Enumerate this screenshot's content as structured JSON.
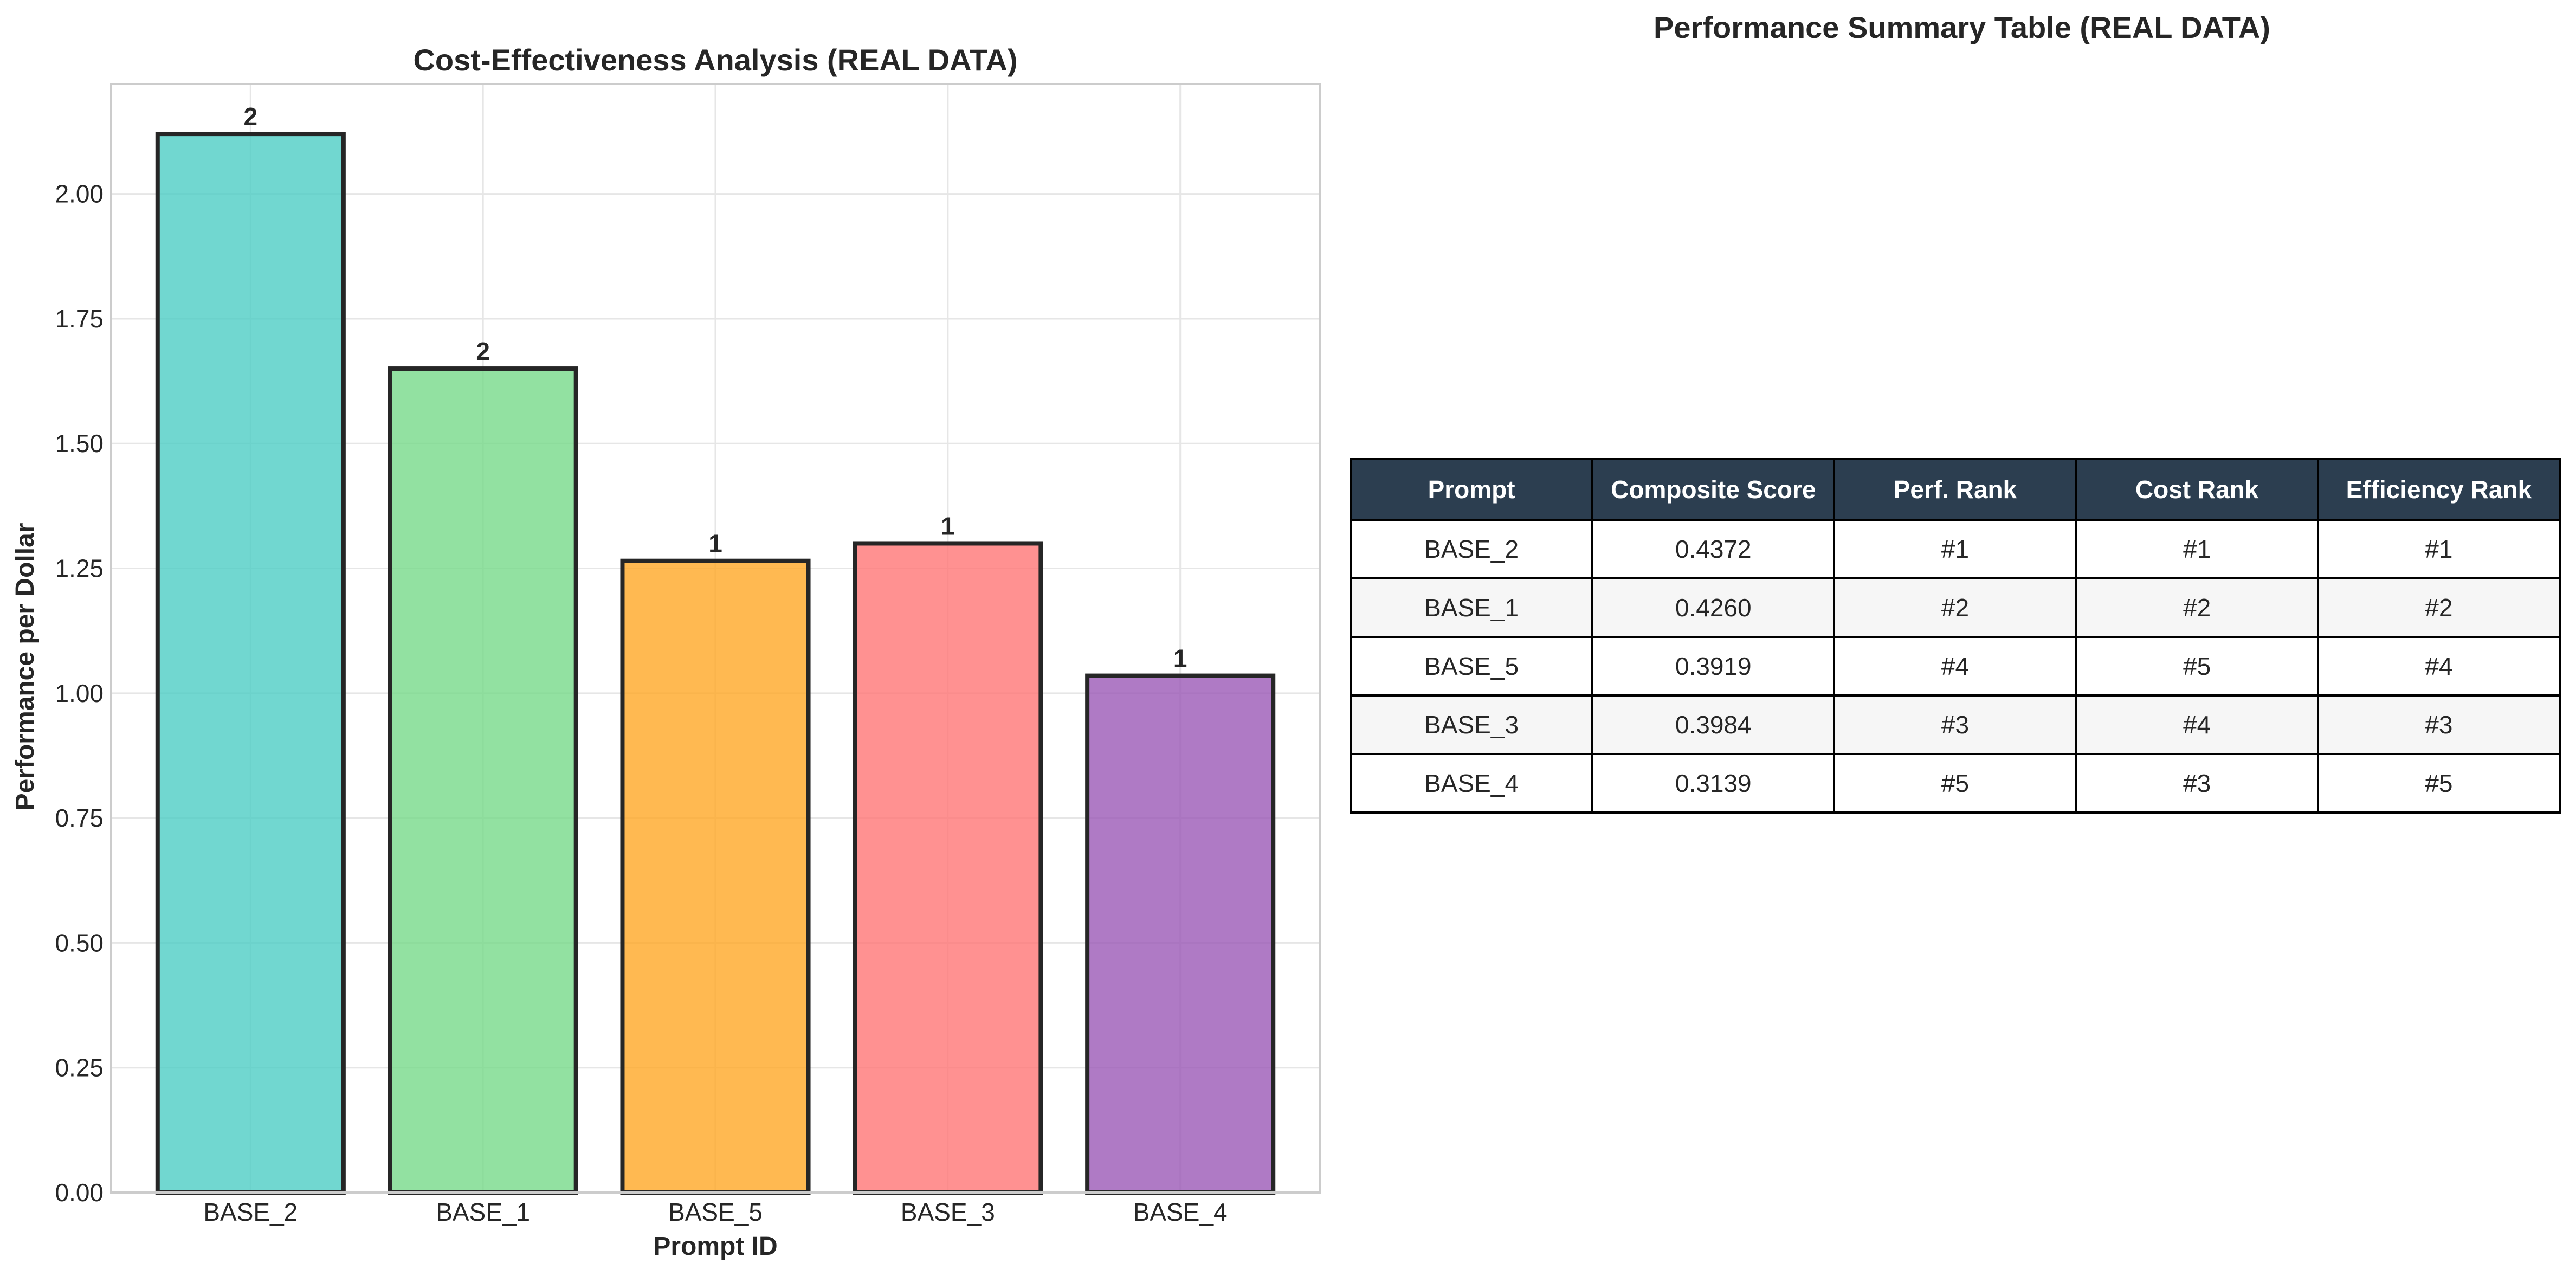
{
  "chart_data": {
    "type": "bar",
    "title": "Cost-Effectiveness Analysis (REAL DATA)",
    "xlabel": "Prompt ID",
    "ylabel": "Performance per Dollar",
    "categories": [
      "BASE_2",
      "BASE_1",
      "BASE_5",
      "BASE_3",
      "BASE_4"
    ],
    "values": [
      2.12,
      1.65,
      1.265,
      1.3,
      1.035
    ],
    "data_labels": [
      "2",
      "2",
      "1",
      "1",
      "1"
    ],
    "colors": [
      "#4ecdc4",
      "#77d98a",
      "#ffa726",
      "#ff7675",
      "#9b59b6"
    ],
    "ylim": [
      0,
      2.22
    ],
    "yticks": [
      "0.00",
      "0.25",
      "0.50",
      "0.75",
      "1.00",
      "1.25",
      "1.50",
      "1.75",
      "2.00"
    ],
    "grid": true
  },
  "table": {
    "title": "Performance Summary Table (REAL DATA)",
    "header_color": "#2c3e50",
    "columns": [
      "Prompt",
      "Composite Score",
      "Perf. Rank",
      "Cost Rank",
      "Efficiency Rank"
    ],
    "rows": [
      [
        "BASE_2",
        "0.4372",
        "#1",
        "#1",
        "#1"
      ],
      [
        "BASE_1",
        "0.4260",
        "#2",
        "#2",
        "#2"
      ],
      [
        "BASE_5",
        "0.3919",
        "#4",
        "#5",
        "#4"
      ],
      [
        "BASE_3",
        "0.3984",
        "#3",
        "#4",
        "#3"
      ],
      [
        "BASE_4",
        "0.3139",
        "#5",
        "#3",
        "#5"
      ]
    ]
  }
}
